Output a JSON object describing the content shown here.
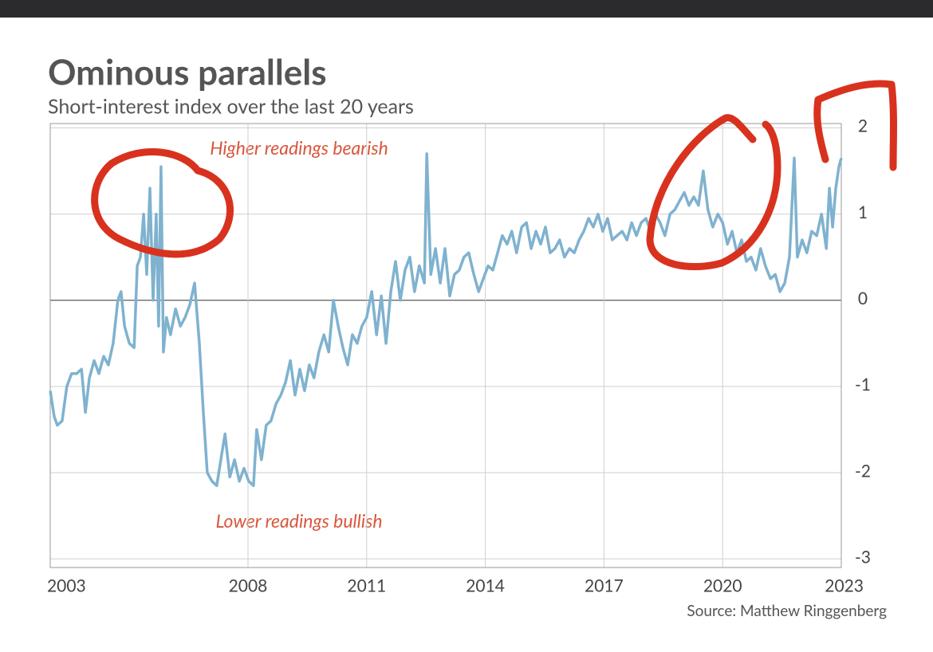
{
  "chart_data": {
    "type": "line",
    "title": "Ominous parallels",
    "subtitle": "Short-interest index over the last 20 years",
    "source": "Source: Matthew Ringgenberg",
    "annotations": [
      "Higher readings bearish",
      "Lower readings bullish"
    ],
    "xlim": [
      2003,
      2023
    ],
    "xticks": [
      2003,
      2008,
      2011,
      2014,
      2017,
      2020,
      2023
    ],
    "ylim": [
      -3.1,
      2.05
    ],
    "yticks": [
      2,
      1,
      0,
      -1,
      -2,
      -3
    ],
    "grid": true,
    "series": [
      {
        "color": "#7fb2cf",
        "x": [
          2003.0,
          2003.1,
          2003.18,
          2003.3,
          2003.42,
          2003.54,
          2003.67,
          2003.79,
          2003.89,
          2003.99,
          2004.11,
          2004.23,
          2004.35,
          2004.47,
          2004.59,
          2004.71,
          2004.79,
          2004.88,
          2005.0,
          2005.12,
          2005.2,
          2005.28,
          2005.36,
          2005.44,
          2005.52,
          2005.6,
          2005.68,
          2005.74,
          2005.8,
          2005.86,
          2005.94,
          2006.04,
          2006.17,
          2006.29,
          2006.41,
          2006.53,
          2006.65,
          2006.77,
          2006.87,
          2006.97,
          2007.09,
          2007.21,
          2007.33,
          2007.42,
          2007.54,
          2007.66,
          2007.78,
          2007.9,
          2008.02,
          2008.14,
          2008.22,
          2008.34,
          2008.46,
          2008.58,
          2008.71,
          2008.83,
          2008.95,
          2009.07,
          2009.19,
          2009.31,
          2009.43,
          2009.55,
          2009.67,
          2009.79,
          2009.92,
          2010.04,
          2010.16,
          2010.28,
          2010.4,
          2010.52,
          2010.64,
          2010.76,
          2010.88,
          2011.0,
          2011.13,
          2011.25,
          2011.37,
          2011.49,
          2011.61,
          2011.73,
          2011.85,
          2011.97,
          2012.09,
          2012.21,
          2012.33,
          2012.46,
          2012.52,
          2012.62,
          2012.74,
          2012.86,
          2012.98,
          2013.1,
          2013.22,
          2013.34,
          2013.46,
          2013.58,
          2013.71,
          2013.83,
          2013.95,
          2014.07,
          2014.19,
          2014.31,
          2014.43,
          2014.55,
          2014.67,
          2014.79,
          2014.92,
          2015.04,
          2015.16,
          2015.28,
          2015.4,
          2015.52,
          2015.64,
          2015.76,
          2015.88,
          2016.0,
          2016.13,
          2016.25,
          2016.37,
          2016.49,
          2016.61,
          2016.73,
          2016.85,
          2016.97,
          2017.09,
          2017.21,
          2017.33,
          2017.46,
          2017.58,
          2017.7,
          2017.82,
          2017.94,
          2018.06,
          2018.18,
          2018.3,
          2018.42,
          2018.54,
          2018.67,
          2018.79,
          2018.91,
          2019.03,
          2019.15,
          2019.27,
          2019.39,
          2019.51,
          2019.63,
          2019.75,
          2019.88,
          2020.0,
          2020.12,
          2020.24,
          2020.36,
          2020.48,
          2020.6,
          2020.72,
          2020.84,
          2020.96,
          2021.08,
          2021.21,
          2021.33,
          2021.45,
          2021.57,
          2021.69,
          2021.81,
          2021.89,
          2022.01,
          2022.13,
          2022.25,
          2022.38,
          2022.5,
          2022.62,
          2022.7,
          2022.78,
          2022.86,
          2022.94,
          2023.0
        ],
        "values": [
          -1.05,
          -1.35,
          -1.45,
          -1.4,
          -1.0,
          -0.85,
          -0.85,
          -0.8,
          -1.3,
          -0.9,
          -0.7,
          -0.85,
          -0.65,
          -0.75,
          -0.5,
          0.0,
          0.1,
          -0.3,
          -0.5,
          -0.55,
          0.4,
          0.5,
          1.0,
          0.3,
          1.3,
          0.0,
          1.0,
          -0.3,
          1.55,
          -0.6,
          -0.2,
          -0.4,
          -0.1,
          -0.3,
          -0.2,
          -0.05,
          0.2,
          -0.5,
          -1.3,
          -2.0,
          -2.1,
          -2.15,
          -1.8,
          -1.55,
          -2.05,
          -1.85,
          -2.1,
          -1.95,
          -2.1,
          -2.15,
          -1.5,
          -1.85,
          -1.45,
          -1.4,
          -1.2,
          -1.1,
          -0.95,
          -0.7,
          -1.1,
          -0.8,
          -1.05,
          -0.75,
          -0.9,
          -0.6,
          -0.4,
          -0.6,
          0.0,
          -0.3,
          -0.55,
          -0.75,
          -0.4,
          -0.5,
          -0.3,
          -0.2,
          0.1,
          -0.4,
          0.05,
          -0.5,
          0.1,
          0.45,
          0.0,
          0.35,
          0.5,
          0.1,
          0.4,
          0.2,
          1.7,
          0.3,
          0.6,
          0.2,
          0.6,
          0.05,
          0.3,
          0.35,
          0.5,
          0.55,
          0.3,
          0.1,
          0.25,
          0.4,
          0.35,
          0.55,
          0.75,
          0.65,
          0.8,
          0.55,
          0.85,
          0.9,
          0.6,
          0.8,
          0.65,
          0.85,
          0.55,
          0.6,
          0.7,
          0.5,
          0.6,
          0.55,
          0.7,
          0.8,
          0.95,
          0.85,
          1.0,
          0.8,
          0.95,
          0.7,
          0.75,
          0.8,
          0.7,
          0.9,
          0.75,
          0.9,
          0.95,
          0.8,
          1.0,
          0.9,
          0.75,
          1.0,
          1.05,
          1.15,
          1.25,
          1.1,
          1.2,
          1.1,
          1.5,
          1.05,
          0.85,
          1.0,
          0.9,
          0.65,
          0.8,
          0.55,
          0.7,
          0.45,
          0.5,
          0.35,
          0.6,
          0.4,
          0.25,
          0.3,
          0.1,
          0.2,
          0.5,
          1.65,
          0.5,
          0.7,
          0.55,
          0.8,
          0.75,
          1.0,
          0.6,
          1.3,
          0.85,
          1.3,
          1.55,
          1.65
        ]
      }
    ]
  }
}
